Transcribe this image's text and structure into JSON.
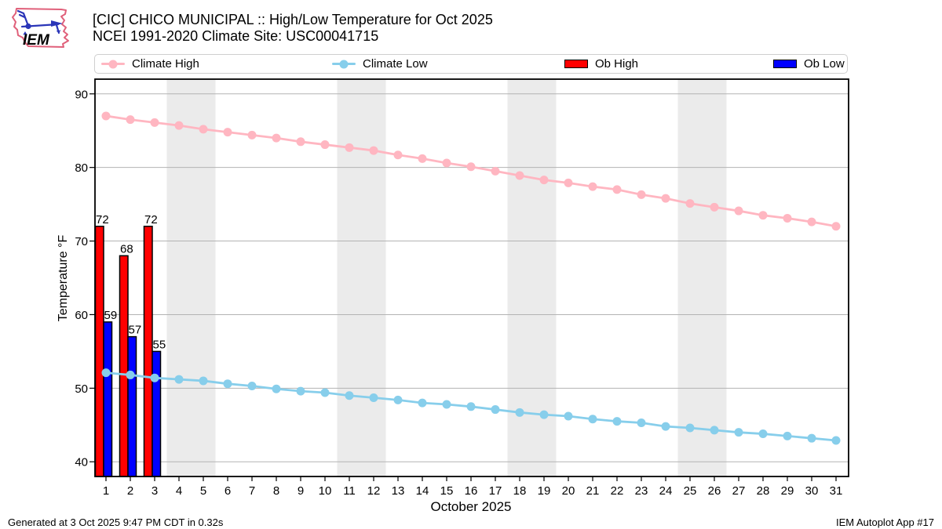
{
  "header": {
    "title_line1": "[CIC] CHICO MUNICIPAL :: High/Low Temperature for Oct 2025",
    "title_line2": "NCEI 1991-2020 Climate Site: USC00041715",
    "logo_text": "IEM"
  },
  "legend": {
    "items": [
      {
        "label": "Climate High",
        "type": "line",
        "color": "#ffb6c1"
      },
      {
        "label": "Climate Low",
        "type": "line",
        "color": "#87ceeb"
      },
      {
        "label": "Ob High",
        "type": "patch",
        "color": "#ff0000"
      },
      {
        "label": "Ob Low",
        "type": "patch",
        "color": "#0000ff"
      }
    ]
  },
  "footer": {
    "generated": "Generated at 3 Oct 2025 9:47 PM CDT in 0.32s",
    "app": "IEM Autoplot App #17"
  },
  "chart_data": {
    "type": "line+bar",
    "title": "[CIC] CHICO MUNICIPAL :: High/Low Temperature for Oct 2025",
    "subtitle": "NCEI 1991-2020 Climate Site: USC00041715",
    "xlabel": "October 2025",
    "ylabel": "Temperature °F",
    "x_tick_labels": [
      1,
      2,
      3,
      4,
      5,
      6,
      7,
      8,
      9,
      10,
      11,
      12,
      13,
      14,
      15,
      16,
      17,
      18,
      19,
      20,
      21,
      22,
      23,
      24,
      25,
      26,
      27,
      28,
      29,
      30,
      31
    ],
    "ylim": [
      38,
      92
    ],
    "yticks": [
      40,
      50,
      60,
      70,
      80,
      90
    ],
    "grid": true,
    "grid_color": "#b3b3b3",
    "band_color": "#ebebeb",
    "weekend_bands": [
      [
        3.5,
        5.5
      ],
      [
        10.5,
        12.5
      ],
      [
        17.5,
        19.5
      ],
      [
        24.5,
        26.5
      ]
    ],
    "series": [
      {
        "name": "Climate High",
        "type": "line",
        "color": "#ffb6c1",
        "values": [
          87.0,
          86.5,
          86.1,
          85.7,
          85.2,
          84.8,
          84.4,
          84.0,
          83.5,
          83.1,
          82.7,
          82.3,
          81.7,
          81.2,
          80.6,
          80.1,
          79.5,
          78.9,
          78.3,
          77.9,
          77.4,
          77.0,
          76.3,
          75.8,
          75.1,
          74.6,
          74.1,
          73.5,
          73.1,
          72.6,
          72.0
        ]
      },
      {
        "name": "Climate Low",
        "type": "line",
        "color": "#87ceeb",
        "values": [
          52.1,
          51.8,
          51.4,
          51.2,
          51.0,
          50.6,
          50.3,
          49.9,
          49.6,
          49.4,
          49.0,
          48.7,
          48.4,
          48.0,
          47.8,
          47.5,
          47.1,
          46.7,
          46.4,
          46.2,
          45.8,
          45.5,
          45.3,
          44.8,
          44.6,
          44.3,
          44.0,
          43.8,
          43.5,
          43.2,
          42.9
        ]
      },
      {
        "name": "Ob High",
        "type": "bar",
        "color": "#ff0000",
        "days": [
          1,
          2,
          3
        ],
        "values": [
          72,
          68,
          72
        ],
        "value_labels": [
          "72",
          "68",
          "72"
        ]
      },
      {
        "name": "Ob Low",
        "type": "bar",
        "color": "#0000ff",
        "days": [
          1,
          2,
          3
        ],
        "values": [
          59,
          57,
          55
        ],
        "value_labels": [
          "59",
          "57",
          "55"
        ]
      }
    ]
  }
}
